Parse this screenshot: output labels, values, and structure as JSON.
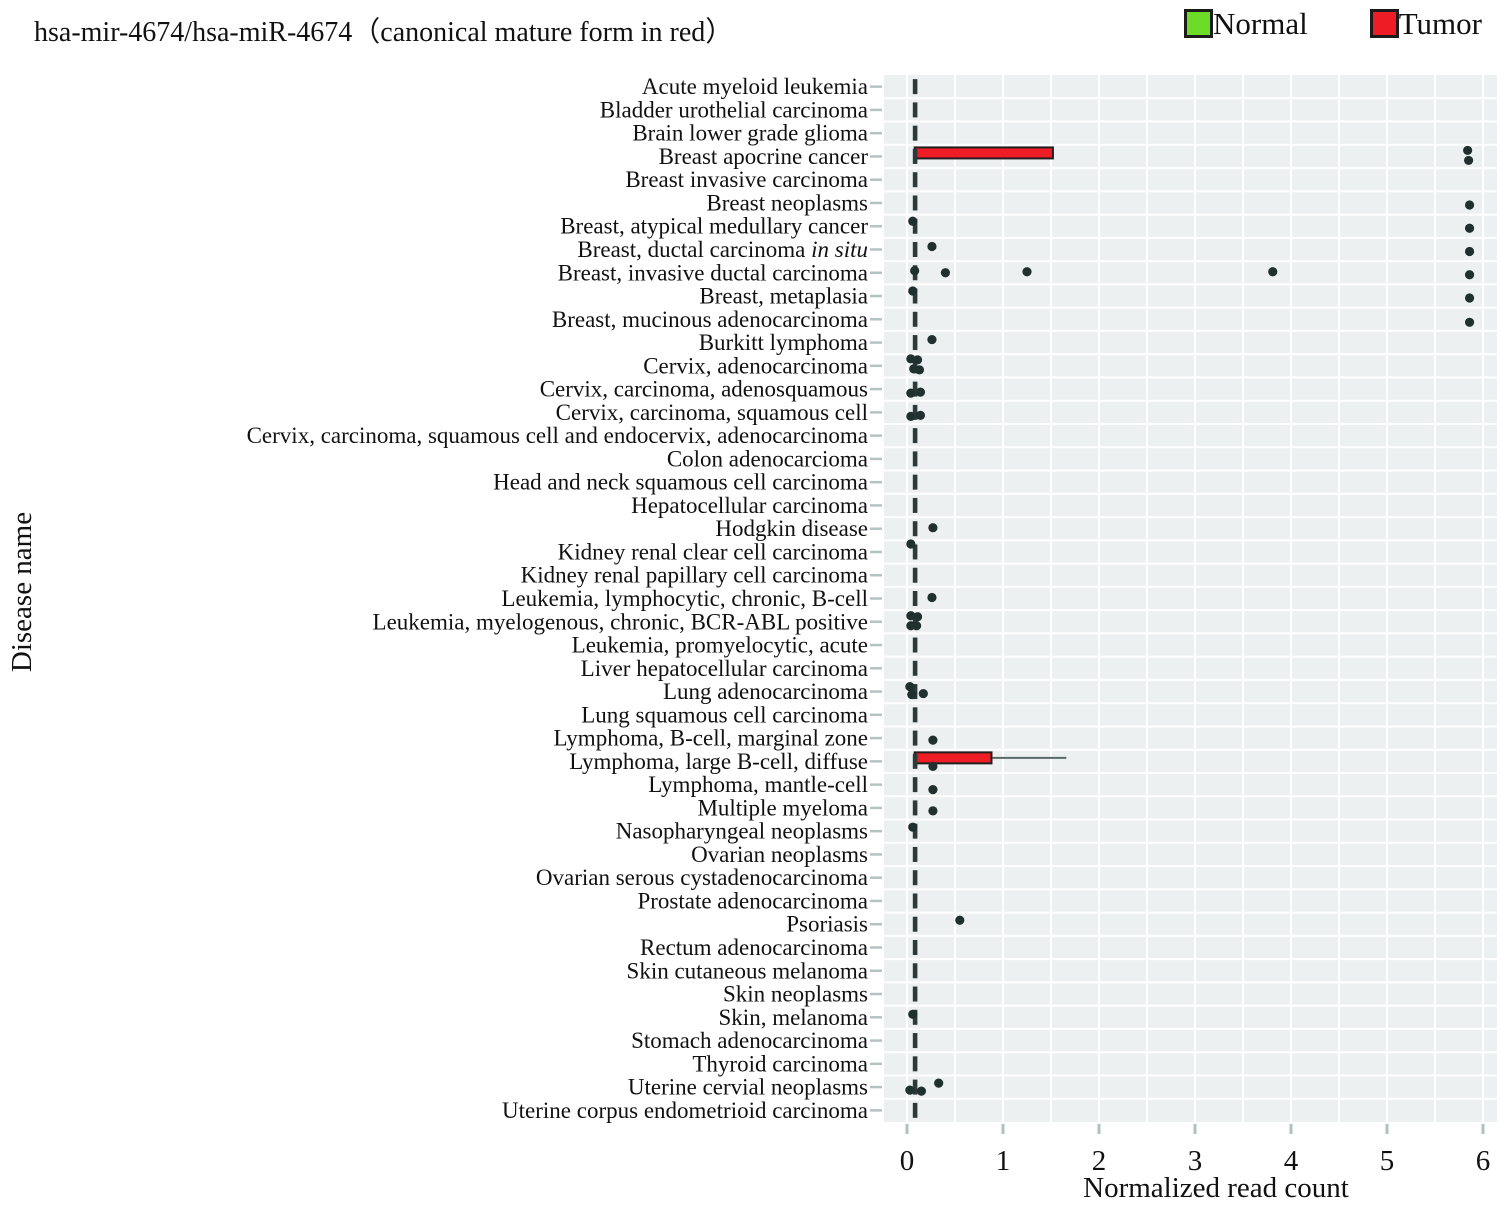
{
  "title": "hsa-mir-4674/hsa-miR-4674（canonical mature form in red）",
  "legend": {
    "normal_label": "Normal",
    "tumor_label": "Tumor",
    "normal_color": "#6cdc29",
    "tumor_color": "#ee1c25"
  },
  "chart_data": {
    "type": "box-scatter",
    "title": "hsa-mir-4674/hsa-miR-4674（canonical mature form in red）",
    "xlabel": "Normalized read count",
    "ylabel": "Disease name",
    "xlim": [
      -0.27,
      6.15
    ],
    "xticks": [
      0,
      1,
      2,
      3,
      4,
      5,
      6
    ],
    "grid": "white on light gray, verticals every 0.5, horizontals every row",
    "legend_position": "top-right",
    "colors": {
      "box_fill": "#ee1c25",
      "box_stroke": "#1f1f1f",
      "point": "#20302f",
      "median": "#2c3a39",
      "plot_bg": "#edf0f1",
      "tick": "#b6c2c2",
      "normal_swatch": "#6cdc29",
      "tumor_swatch": "#ee1c25"
    },
    "rows": [
      {
        "label": "Acute myeloid leukemia",
        "median": 0,
        "dots": []
      },
      {
        "label": "Bladder urothelial carcinoma",
        "median": 0,
        "dots": []
      },
      {
        "label": "Brain lower grade glioma",
        "median": 0,
        "dots": []
      },
      {
        "label": "Breast apocrine cancer",
        "median": 0,
        "box": [
          0.08,
          1.52
        ],
        "dots": [
          [
            5.84,
            -6
          ],
          [
            5.85,
            4
          ]
        ]
      },
      {
        "label": "Breast invasive carcinoma",
        "median": 0,
        "dots": []
      },
      {
        "label": "Breast neoplasms",
        "median": 0,
        "dots": [
          [
            5.86,
            2
          ]
        ]
      },
      {
        "label": "Breast, atypical medullary cancer",
        "median": 0,
        "dots": [
          [
            0.06,
            -5
          ],
          [
            5.86,
            2
          ]
        ]
      },
      {
        "label": "Breast, ductal carcinoma ",
        "italic": "in situ",
        "median": 0,
        "dots": [
          [
            0.26,
            -3
          ],
          [
            5.86,
            2
          ]
        ]
      },
      {
        "label": "Breast, invasive ductal carcinoma",
        "median": 0,
        "dots": [
          [
            0.08,
            -2
          ],
          [
            0.4,
            0
          ],
          [
            1.25,
            -1
          ],
          [
            3.81,
            -1
          ],
          [
            5.86,
            2
          ]
        ]
      },
      {
        "label": "Breast, metaplasia",
        "median": 0,
        "dots": [
          [
            0.06,
            -5
          ],
          [
            5.86,
            2
          ]
        ]
      },
      {
        "label": "Breast, mucinous adenocarcinoma",
        "median": 0,
        "dots": [
          [
            5.86,
            3
          ]
        ]
      },
      {
        "label": "Burkitt lymphoma",
        "median": 0,
        "dots": [
          [
            0.26,
            -3
          ]
        ]
      },
      {
        "label": "Cervix, adenocarcinoma",
        "median": 0,
        "dots": [
          [
            0.04,
            -7
          ],
          [
            0.11,
            -6
          ],
          [
            0.07,
            3
          ],
          [
            0.13,
            4
          ]
        ]
      },
      {
        "label": "Cervix, carcinoma, adenosquamous",
        "median": 0,
        "dots": [
          [
            0.04,
            4
          ],
          [
            0.14,
            3
          ]
        ]
      },
      {
        "label": "Cervix, carcinoma, squamous cell",
        "median": 0,
        "dots": [
          [
            0.04,
            4
          ],
          [
            0.14,
            3
          ]
        ]
      },
      {
        "label": "Cervix, carcinoma, squamous cell and endocervix, adenocarcinoma",
        "median": 0,
        "dots": []
      },
      {
        "label": "Colon adenocarcioma",
        "median": 0,
        "dots": []
      },
      {
        "label": "Head and neck squamous cell carcinoma",
        "median": 0,
        "dots": []
      },
      {
        "label": "Hepatocellular carcinoma",
        "median": 0,
        "dots": []
      },
      {
        "label": "Hodgkin disease",
        "median": 0,
        "dots": [
          [
            0.27,
            -1
          ]
        ]
      },
      {
        "label": "Kidney renal clear cell carcinoma",
        "median": 0,
        "dots": [
          [
            0.04,
            -8
          ]
        ]
      },
      {
        "label": "Kidney renal papillary cell carcinoma",
        "median": 0,
        "dots": []
      },
      {
        "label": "Leukemia, lymphocytic, chronic, B-cell",
        "median": 0,
        "dots": [
          [
            0.26,
            -1
          ]
        ]
      },
      {
        "label": "Leukemia, myelogenous, chronic, BCR-ABL positive",
        "median": 0,
        "dots": [
          [
            0.04,
            -6
          ],
          [
            0.11,
            -5
          ],
          [
            0.04,
            4
          ],
          [
            0.1,
            4
          ]
        ]
      },
      {
        "label": "Leukemia, promyelocytic, acute",
        "median": 0,
        "dots": []
      },
      {
        "label": "Liver hepatocellular carcinoma",
        "median": 0,
        "dots": []
      },
      {
        "label": "Lung adenocarcinoma",
        "median": 0,
        "dots": [
          [
            0.03,
            -5
          ],
          [
            0.05,
            3
          ],
          [
            0.17,
            2
          ]
        ]
      },
      {
        "label": "Lung squamous cell carcinoma",
        "median": 0,
        "dots": []
      },
      {
        "label": "Lymphoma, B-cell, marginal zone",
        "median": 0,
        "dots": [
          [
            0.27,
            2
          ]
        ]
      },
      {
        "label": "Lymphoma, large B-cell, diffuse",
        "median": 0,
        "box": [
          0.08,
          0.88
        ],
        "whisker": 1.66,
        "dots": [
          [
            0.27,
            5
          ]
        ]
      },
      {
        "label": "Lymphoma, mantle-cell",
        "median": 0,
        "dots": [
          [
            0.27,
            5
          ]
        ]
      },
      {
        "label": "Multiple myeloma",
        "median": 0,
        "dots": [
          [
            0.27,
            3
          ]
        ]
      },
      {
        "label": "Nasopharyngeal neoplasms",
        "median": 0,
        "dots": [
          [
            0.06,
            -4
          ]
        ]
      },
      {
        "label": "Ovarian neoplasms",
        "median": 0,
        "dots": []
      },
      {
        "label": "Ovarian serous cystadenocarcinoma",
        "median": 0,
        "dots": []
      },
      {
        "label": "Prostate adenocarcinoma",
        "median": 0,
        "dots": []
      },
      {
        "label": "Psoriasis",
        "median": 0,
        "dots": [
          [
            0.55,
            -4
          ]
        ]
      },
      {
        "label": "Rectum adenocarcinoma",
        "median": 0,
        "dots": []
      },
      {
        "label": "Skin cutaneous melanoma",
        "median": 0,
        "dots": []
      },
      {
        "label": "Skin neoplasms",
        "median": 0,
        "dots": []
      },
      {
        "label": "Skin, melanoma",
        "median": 0,
        "dots": [
          [
            0.06,
            -3
          ]
        ]
      },
      {
        "label": "Stomach adenocarcinoma",
        "median": 0,
        "dots": []
      },
      {
        "label": "Thyroid carcinoma",
        "median": 0,
        "dots": []
      },
      {
        "label": "Uterine cervial neoplasms",
        "median": 0,
        "dots": [
          [
            0.03,
            3
          ],
          [
            0.15,
            4
          ],
          [
            0.33,
            -4
          ]
        ]
      },
      {
        "label": "Uterine corpus endometrioid carcinoma",
        "median": 0,
        "dots": []
      }
    ]
  }
}
